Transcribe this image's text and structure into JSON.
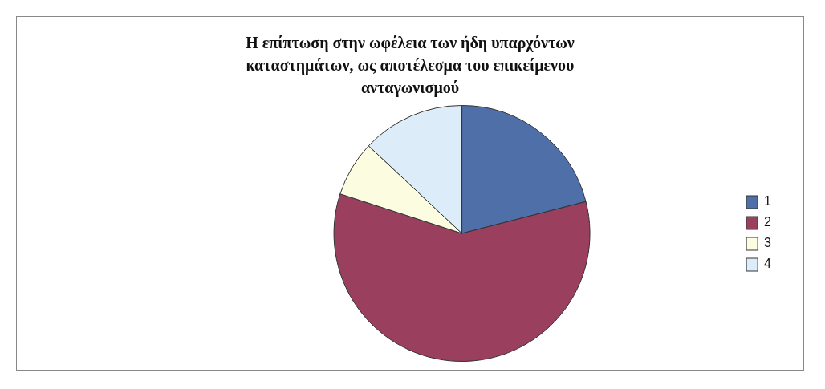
{
  "chart_data": {
    "type": "pie",
    "title": "Η επίπτωση στην ωφέλεια των ήδη υπαρχόντων καταστημάτων, ως αποτέλεσμα του επικείμενου ανταγωνισμού",
    "categories": [
      "1",
      "2",
      "3",
      "4"
    ],
    "values": [
      21,
      59,
      7,
      13
    ],
    "colors": [
      "#4f6fa8",
      "#9b3f5e",
      "#fcfce0",
      "#dcecf8"
    ],
    "legend": "right"
  }
}
